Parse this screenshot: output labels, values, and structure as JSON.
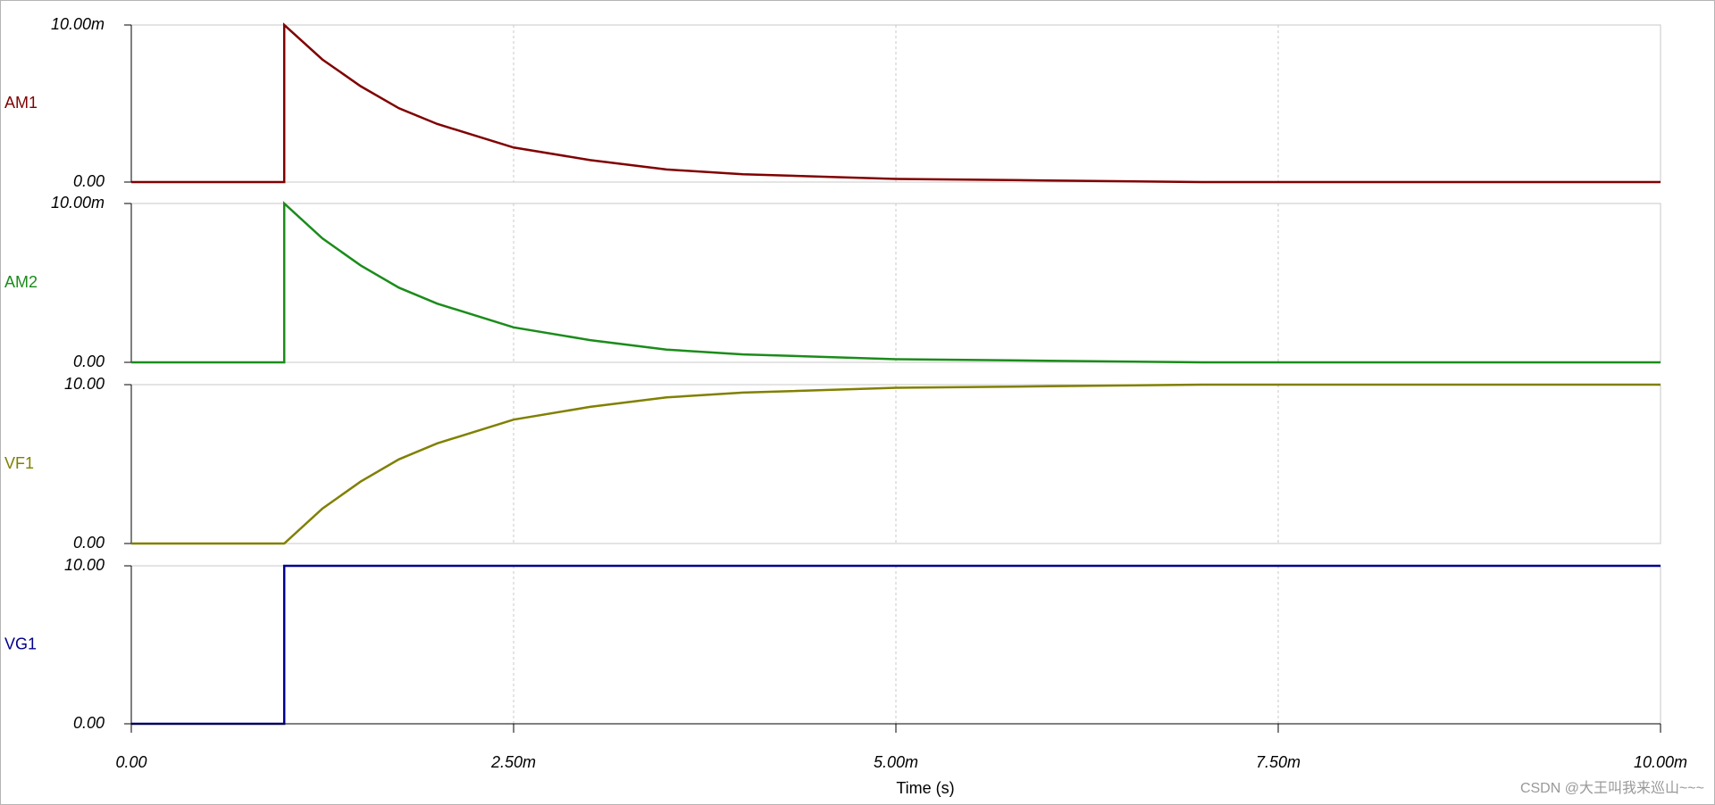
{
  "chart_data": {
    "type": "line",
    "xlabel": "Time (s)",
    "xlim": [
      0,
      0.01
    ],
    "xticks": [
      {
        "value": 0,
        "label": "0.00"
      },
      {
        "value": 0.0025,
        "label": "2.50m"
      },
      {
        "value": 0.005,
        "label": "5.00m"
      },
      {
        "value": 0.0075,
        "label": "7.50m"
      },
      {
        "value": 0.01,
        "label": "10.00m"
      }
    ],
    "grid": true,
    "panels": [
      {
        "name": "AM1",
        "color": "#800000",
        "x": [
          0,
          0.001,
          0.001,
          0.00125,
          0.0015,
          0.00175,
          0.002,
          0.0025,
          0.003,
          0.0035,
          0.004,
          0.005,
          0.006,
          0.007,
          0.008,
          0.01
        ],
        "values": [
          0,
          0,
          0.01,
          0.0078,
          0.0061,
          0.0047,
          0.0037,
          0.0022,
          0.0014,
          0.0008,
          0.0005,
          0.0002,
          0.0001,
          0,
          0,
          0
        ],
        "ylim": [
          0,
          0.01
        ],
        "yticks": [
          {
            "value": 0,
            "label": "0.00"
          },
          {
            "value": 0.01,
            "label": "10.00m"
          }
        ]
      },
      {
        "name": "AM2",
        "color": "#1a8c1a",
        "x": [
          0,
          0.001,
          0.001,
          0.00125,
          0.0015,
          0.00175,
          0.002,
          0.0025,
          0.003,
          0.0035,
          0.004,
          0.005,
          0.006,
          0.007,
          0.008,
          0.01
        ],
        "values": [
          0,
          0,
          0.01,
          0.0078,
          0.0061,
          0.0047,
          0.0037,
          0.0022,
          0.0014,
          0.0008,
          0.0005,
          0.0002,
          0.0001,
          0,
          0,
          0
        ],
        "ylim": [
          0,
          0.01
        ],
        "yticks": [
          {
            "value": 0,
            "label": "0.00"
          },
          {
            "value": 0.01,
            "label": "10.00m"
          }
        ]
      },
      {
        "name": "VF1",
        "color": "#808000",
        "x": [
          0,
          0.001,
          0.001,
          0.00125,
          0.0015,
          0.00175,
          0.002,
          0.0025,
          0.003,
          0.0035,
          0.004,
          0.005,
          0.006,
          0.007,
          0.008,
          0.01
        ],
        "values": [
          0,
          0,
          0,
          2.2,
          3.9,
          5.3,
          6.3,
          7.8,
          8.6,
          9.2,
          9.5,
          9.8,
          9.9,
          10,
          10,
          10
        ],
        "ylim": [
          0,
          10
        ],
        "yticks": [
          {
            "value": 0,
            "label": "0.00"
          },
          {
            "value": 10,
            "label": "10.00"
          }
        ]
      },
      {
        "name": "VG1",
        "color": "#00008b",
        "x": [
          0,
          0.001,
          0.001,
          0.01
        ],
        "values": [
          0,
          0,
          10,
          10
        ],
        "ylim": [
          0,
          10
        ],
        "yticks": [
          {
            "value": 0,
            "label": "0.00"
          },
          {
            "value": 10,
            "label": "10.00"
          }
        ]
      }
    ]
  },
  "watermark": "CSDN @大王叫我来巡山~~~"
}
